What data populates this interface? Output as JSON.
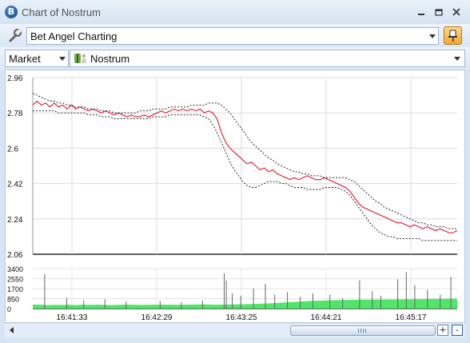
{
  "window": {
    "title": "Chart of Nostrum",
    "app_icon_letter": "B"
  },
  "toolbar": {
    "profile_value": "Bet Angel Charting"
  },
  "selector": {
    "type_value": "Market",
    "selection_value": "Nostrum"
  },
  "colors": {
    "price_line": "#e0162b",
    "band_line": "#111111",
    "volume_fill": "#33e04f",
    "volume_bar": "#666666",
    "window_bg": "#d6e4f3"
  },
  "icons": [
    "app-logo-icon",
    "minimize-icon",
    "maximize-icon",
    "close-icon",
    "wrench-icon",
    "pin-icon",
    "horse-icon",
    "chevron-down-icon",
    "scroll-left-icon",
    "scroll-right-icon",
    "zoom-in-icon",
    "zoom-out-icon"
  ],
  "scroll": {
    "zoom_in_label": "+",
    "zoom_out_label": "-"
  },
  "chart_data": {
    "type": "line",
    "price_axis": {
      "ticks": [
        "2.96",
        "2.78",
        "2.6",
        "2.42",
        "2.24",
        "2.06"
      ],
      "ylim": [
        2.06,
        2.96
      ]
    },
    "volume_axis": {
      "ticks": [
        "3400",
        "2550",
        "1700",
        "850",
        "0"
      ],
      "ylim": [
        0,
        3400
      ]
    },
    "x_ticks": [
      "16:41:33",
      "16:42:29",
      "16:43:25",
      "16:44:21",
      "16:45:17"
    ],
    "grid": true,
    "series": [
      {
        "values": [
          2.82,
          2.84,
          2.82,
          2.83,
          2.81,
          2.83,
          2.81,
          2.82,
          2.8,
          2.82,
          2.8,
          2.81,
          2.8,
          2.79,
          2.8,
          2.79,
          2.78,
          2.79,
          2.78,
          2.77,
          2.78,
          2.77,
          2.76,
          2.77,
          2.76,
          2.76,
          2.77,
          2.76,
          2.77,
          2.78,
          2.79,
          2.78,
          2.79,
          2.8,
          2.79,
          2.8,
          2.79,
          2.8,
          2.79,
          2.8,
          2.78,
          2.79,
          2.78,
          2.75,
          2.68,
          2.63,
          2.6,
          2.58,
          2.56,
          2.54,
          2.52,
          2.53,
          2.51,
          2.49,
          2.5,
          2.48,
          2.49,
          2.47,
          2.46,
          2.45,
          2.44,
          2.45,
          2.44,
          2.45,
          2.46,
          2.45,
          2.44,
          2.44,
          2.45,
          2.44,
          2.43,
          2.42,
          2.41,
          2.4,
          2.38,
          2.35,
          2.32,
          2.3,
          2.29,
          2.28,
          2.27,
          2.26,
          2.25,
          2.24,
          2.23,
          2.22,
          2.22,
          2.21,
          2.2,
          2.21,
          2.2,
          2.19,
          2.2,
          2.19,
          2.18,
          2.19,
          2.18,
          2.17,
          2.17,
          2.18
        ]
      },
      {
        "values": [
          2.88,
          2.87,
          2.86,
          2.85,
          2.84,
          2.84,
          2.83,
          2.83,
          2.82,
          2.82,
          2.81,
          2.81,
          2.81,
          2.8,
          2.8,
          2.8,
          2.79,
          2.79,
          2.79,
          2.78,
          2.78,
          2.78,
          2.78,
          2.78,
          2.78,
          2.79,
          2.79,
          2.79,
          2.8,
          2.8,
          2.8,
          2.8,
          2.81,
          2.81,
          2.81,
          2.81,
          2.81,
          2.82,
          2.82,
          2.82,
          2.82,
          2.83,
          2.83,
          2.83,
          2.82,
          2.8,
          2.78,
          2.75,
          2.72,
          2.69,
          2.66,
          2.63,
          2.61,
          2.59,
          2.57,
          2.55,
          2.54,
          2.52,
          2.51,
          2.5,
          2.49,
          2.48,
          2.48,
          2.47,
          2.47,
          2.46,
          2.46,
          2.46,
          2.45,
          2.45,
          2.45,
          2.45,
          2.45,
          2.45,
          2.44,
          2.43,
          2.41,
          2.39,
          2.37,
          2.35,
          2.33,
          2.32,
          2.3,
          2.29,
          2.28,
          2.27,
          2.26,
          2.25,
          2.24,
          2.23,
          2.22,
          2.22,
          2.21,
          2.21,
          2.2,
          2.2,
          2.2,
          2.19,
          2.19,
          2.19
        ]
      },
      {
        "values": [
          2.79,
          2.79,
          2.79,
          2.79,
          2.79,
          2.79,
          2.78,
          2.78,
          2.78,
          2.78,
          2.78,
          2.78,
          2.78,
          2.77,
          2.77,
          2.77,
          2.76,
          2.76,
          2.76,
          2.75,
          2.75,
          2.75,
          2.75,
          2.75,
          2.75,
          2.75,
          2.75,
          2.75,
          2.76,
          2.76,
          2.76,
          2.76,
          2.77,
          2.77,
          2.77,
          2.77,
          2.77,
          2.77,
          2.77,
          2.77,
          2.76,
          2.75,
          2.72,
          2.68,
          2.63,
          2.58,
          2.53,
          2.49,
          2.46,
          2.43,
          2.41,
          2.4,
          2.4,
          2.41,
          2.42,
          2.43,
          2.43,
          2.43,
          2.42,
          2.42,
          2.41,
          2.4,
          2.4,
          2.4,
          2.39,
          2.39,
          2.39,
          2.39,
          2.4,
          2.4,
          2.4,
          2.4,
          2.39,
          2.38,
          2.36,
          2.33,
          2.3,
          2.27,
          2.24,
          2.21,
          2.19,
          2.17,
          2.16,
          2.15,
          2.15,
          2.14,
          2.14,
          2.14,
          2.14,
          2.14,
          2.14,
          2.13,
          2.13,
          2.13,
          2.13,
          2.13,
          2.13,
          2.13,
          2.13,
          2.13
        ]
      }
    ],
    "volume": {
      "area_values": [
        350,
        330,
        300,
        320,
        310,
        330,
        300,
        340,
        320,
        330,
        310,
        300,
        320,
        340,
        330,
        310,
        320,
        330,
        340,
        330,
        320,
        330,
        340,
        350,
        360,
        340,
        330,
        350,
        360,
        370,
        380,
        400,
        420,
        450,
        480,
        520,
        560,
        600,
        640,
        660,
        680,
        700,
        720,
        730,
        740,
        750,
        760,
        760,
        770,
        780,
        780,
        790,
        800,
        800,
        810,
        820,
        820,
        830,
        830,
        840
      ],
      "spikes": [
        {
          "t": 0.028,
          "v": 2950
        },
        {
          "t": 0.08,
          "v": 900
        },
        {
          "t": 0.12,
          "v": 700
        },
        {
          "t": 0.17,
          "v": 800
        },
        {
          "t": 0.22,
          "v": 600
        },
        {
          "t": 0.3,
          "v": 650
        },
        {
          "t": 0.35,
          "v": 550
        },
        {
          "t": 0.4,
          "v": 700
        },
        {
          "t": 0.451,
          "v": 3000
        },
        {
          "t": 0.456,
          "v": 2400
        },
        {
          "t": 0.47,
          "v": 1300
        },
        {
          "t": 0.49,
          "v": 1100
        },
        {
          "t": 0.52,
          "v": 1700
        },
        {
          "t": 0.548,
          "v": 2100
        },
        {
          "t": 0.57,
          "v": 1200
        },
        {
          "t": 0.6,
          "v": 1400
        },
        {
          "t": 0.63,
          "v": 1000
        },
        {
          "t": 0.66,
          "v": 1300
        },
        {
          "t": 0.7,
          "v": 1200
        },
        {
          "t": 0.73,
          "v": 900
        },
        {
          "t": 0.77,
          "v": 2400
        },
        {
          "t": 0.8,
          "v": 1500
        },
        {
          "t": 0.82,
          "v": 1100
        },
        {
          "t": 0.86,
          "v": 2500
        },
        {
          "t": 0.88,
          "v": 3100
        },
        {
          "t": 0.9,
          "v": 2000
        },
        {
          "t": 0.93,
          "v": 1600
        },
        {
          "t": 0.96,
          "v": 1200
        },
        {
          "t": 0.985,
          "v": 2700
        }
      ]
    }
  }
}
